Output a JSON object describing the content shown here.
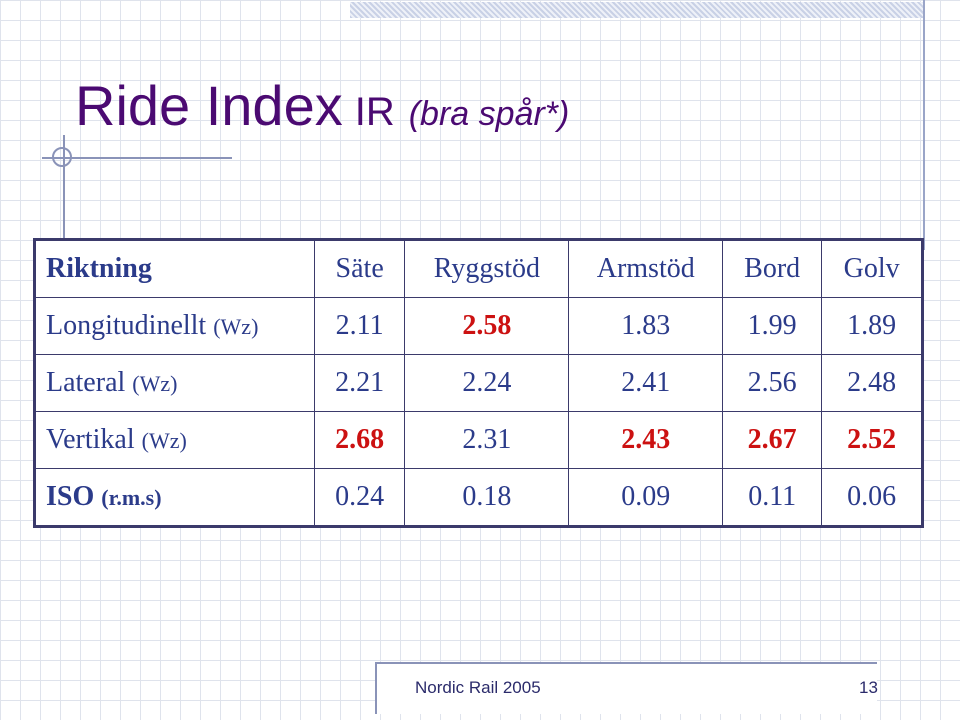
{
  "slide": {
    "title_main": "Ride Index",
    "title_ir": "IR",
    "title_sub": "(bra spår*)",
    "footer_text": "Nordic Rail 2005",
    "page_number": "13"
  },
  "table": {
    "header": [
      "Riktning",
      "Säte",
      "Ryggstöd",
      "Armstöd",
      "Bord",
      "Golv"
    ],
    "rows": [
      {
        "label": "Longitudinellt",
        "unit": "(Wz)",
        "values": [
          "2.11",
          "2.58",
          "1.83",
          "1.99",
          "1.89"
        ],
        "highlight": [
          false,
          true,
          false,
          false,
          false
        ]
      },
      {
        "label": "Lateral",
        "unit": "(Wz)",
        "values": [
          "2.21",
          "2.24",
          "2.41",
          "2.56",
          "2.48"
        ],
        "highlight": [
          false,
          false,
          false,
          false,
          false
        ]
      },
      {
        "label": "Vertikal",
        "unit": "(Wz)",
        "values": [
          "2.68",
          "2.31",
          "2.43",
          "2.67",
          "2.52"
        ],
        "highlight": [
          true,
          false,
          true,
          true,
          true
        ]
      },
      {
        "label": "ISO",
        "unit": "(r.m.s)",
        "values": [
          "0.24",
          "0.18",
          "0.09",
          "0.11",
          "0.06"
        ],
        "highlight": [
          false,
          false,
          false,
          false,
          false
        ]
      }
    ]
  },
  "colors": {
    "title": "#4b0a72",
    "table_text": "#2b3b8a",
    "highlight": "#cc1111"
  }
}
